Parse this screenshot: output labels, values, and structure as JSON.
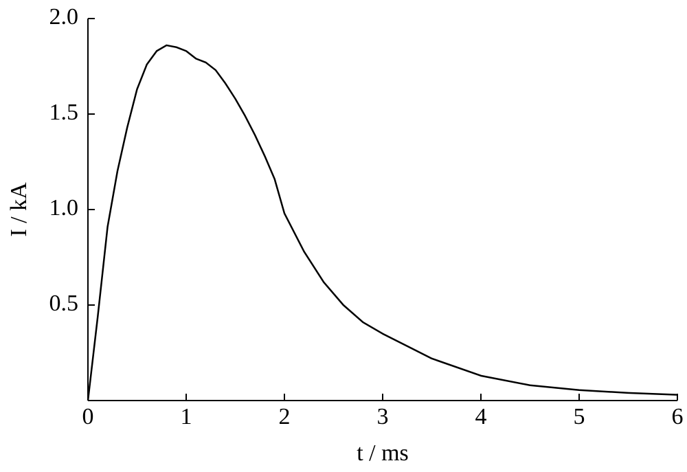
{
  "chart_data": {
    "type": "line",
    "x_label": "t / ms",
    "y_label": "I / kA",
    "x": [
      0,
      0.1,
      0.2,
      0.3,
      0.4,
      0.5,
      0.6,
      0.7,
      0.8,
      0.9,
      1.0,
      1.1,
      1.2,
      1.3,
      1.4,
      1.5,
      1.6,
      1.7,
      1.8,
      1.9,
      2.0,
      2.2,
      2.4,
      2.6,
      2.8,
      3.0,
      3.5,
      4.0,
      4.5,
      5.0,
      5.5,
      6.0
    ],
    "series": [
      {
        "color": "#000000",
        "values": [
          0,
          0.44,
          0.91,
          1.2,
          1.43,
          1.63,
          1.76,
          1.83,
          1.86,
          1.85,
          1.83,
          1.79,
          1.77,
          1.73,
          1.66,
          1.58,
          1.49,
          1.39,
          1.28,
          1.16,
          0.98,
          0.78,
          0.62,
          0.5,
          0.41,
          0.35,
          0.22,
          0.13,
          0.08,
          0.055,
          0.04,
          0.03
        ]
      }
    ],
    "xlim": [
      0,
      6
    ],
    "ylim": [
      0,
      2
    ],
    "xticks": [
      0,
      1,
      2,
      3,
      4,
      5,
      6
    ],
    "yticks": [
      0.5,
      {
        "value": 1,
        "label": "1.0"
      },
      1.5,
      {
        "value": 2,
        "label": "2.0"
      }
    ]
  }
}
